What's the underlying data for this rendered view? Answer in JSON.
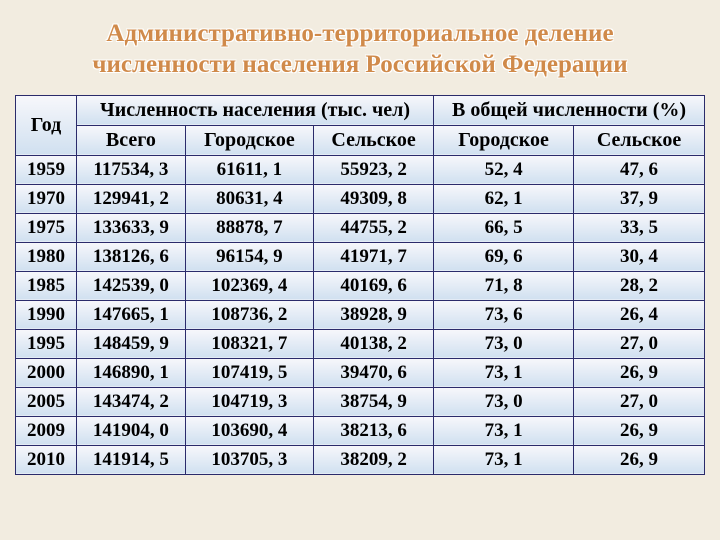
{
  "title_line1": "Административно-территориальное деление",
  "title_line2": "численности населения Российской Федерации",
  "headers": {
    "year": "Год",
    "pop_total_group": "Численность населения (тыс. чел)",
    "pop_total": "Всего",
    "pop_urban": "Городское",
    "pop_rural": "Сельское",
    "pct_group": "В общей численности (%)",
    "pct_urban": "Городское",
    "pct_rural": "Сельское"
  },
  "rows": [
    {
      "year": "1959",
      "total": "117534, 3",
      "urban": "61611, 1",
      "rural": "55923, 2",
      "pct_urban": "52, 4",
      "pct_rural": "47, 6"
    },
    {
      "year": "1970",
      "total": "129941, 2",
      "urban": "80631, 4",
      "rural": "49309, 8",
      "pct_urban": "62, 1",
      "pct_rural": "37, 9"
    },
    {
      "year": "1975",
      "total": "133633, 9",
      "urban": "88878, 7",
      "rural": "44755, 2",
      "pct_urban": "66, 5",
      "pct_rural": "33, 5"
    },
    {
      "year": "1980",
      "total": "138126, 6",
      "urban": "96154, 9",
      "rural": "41971, 7",
      "pct_urban": "69, 6",
      "pct_rural": "30, 4"
    },
    {
      "year": "1985",
      "total": "142539, 0",
      "urban": "102369, 4",
      "rural": "40169, 6",
      "pct_urban": "71, 8",
      "pct_rural": "28, 2"
    },
    {
      "year": "1990",
      "total": "147665, 1",
      "urban": "108736, 2",
      "rural": "38928, 9",
      "pct_urban": "73, 6",
      "pct_rural": "26, 4"
    },
    {
      "year": "1995",
      "total": "148459, 9",
      "urban": "108321, 7",
      "rural": "40138, 2",
      "pct_urban": "73, 0",
      "pct_rural": "27, 0"
    },
    {
      "year": "2000",
      "total": "146890, 1",
      "urban": "107419, 5",
      "rural": "39470, 6",
      "pct_urban": "73, 1",
      "pct_rural": "26, 9"
    },
    {
      "year": "2005",
      "total": "143474, 2",
      "urban": "104719, 3",
      "rural": "38754, 9",
      "pct_urban": "73, 0",
      "pct_rural": "27, 0"
    },
    {
      "year": "2009",
      "total": "141904, 0",
      "urban": "103690, 4",
      "rural": "38213, 6",
      "pct_urban": "73, 1",
      "pct_rural": "26, 9"
    },
    {
      "year": "2010",
      "total": "141914, 5",
      "urban": "103705, 3",
      "rural": "38209, 2",
      "pct_urban": "73, 1",
      "pct_rural": "26, 9"
    }
  ]
}
